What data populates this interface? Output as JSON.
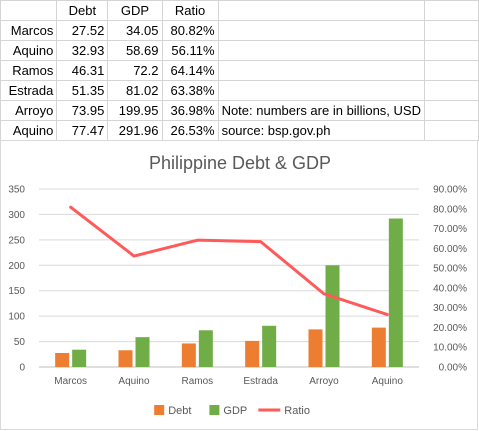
{
  "sheet": {
    "headers": [
      "",
      "Debt",
      "GDP",
      "Ratio",
      "",
      ""
    ],
    "rows": [
      {
        "name": "Marcos",
        "debt": "27.52",
        "gdp": "34.05",
        "ratio": "80.82%",
        "note": ""
      },
      {
        "name": "Aquino",
        "debt": "32.93",
        "gdp": "58.69",
        "ratio": "56.11%",
        "note": ""
      },
      {
        "name": "Ramos",
        "debt": "46.31",
        "gdp": "72.2",
        "ratio": "64.14%",
        "note": ""
      },
      {
        "name": "Estrada",
        "debt": "51.35",
        "gdp": "81.02",
        "ratio": "63.38%",
        "note": ""
      },
      {
        "name": "Arroyo",
        "debt": "73.95",
        "gdp": "199.95",
        "ratio": "36.98%",
        "note": "Note: numbers are in billions, USD"
      },
      {
        "name": "Aquino",
        "debt": "77.47",
        "gdp": "291.96",
        "ratio": "26.53%",
        "note": "source: bsp.gov.ph"
      }
    ]
  },
  "chart_data": {
    "type": "bar",
    "title": "Philippine Debt & GDP",
    "categories": [
      "Marcos",
      "Aquino",
      "Ramos",
      "Estrada",
      "Arroyo",
      "Aquino"
    ],
    "series": [
      {
        "name": "Debt",
        "type": "bar",
        "axis": "left",
        "color": "#ED7D31",
        "values": [
          27.52,
          32.93,
          46.31,
          51.35,
          73.95,
          77.47
        ]
      },
      {
        "name": "GDP",
        "type": "bar",
        "axis": "left",
        "color": "#70AD47",
        "values": [
          34.05,
          58.69,
          72.2,
          81.02,
          199.95,
          291.96
        ]
      },
      {
        "name": "Ratio",
        "type": "line",
        "axis": "right",
        "color": "#FF5A5A",
        "values": [
          0.8082,
          0.5611,
          0.6414,
          0.6338,
          0.3698,
          0.2653
        ]
      }
    ],
    "y_left": {
      "min": 0,
      "max": 350,
      "step": 50,
      "ticks": [
        "0",
        "50",
        "100",
        "150",
        "200",
        "250",
        "300",
        "350"
      ]
    },
    "y_right": {
      "min": 0,
      "max": 0.9,
      "step": 0.1,
      "ticks": [
        "0.00%",
        "10.00%",
        "20.00%",
        "30.00%",
        "40.00%",
        "50.00%",
        "60.00%",
        "70.00%",
        "80.00%",
        "90.00%"
      ]
    },
    "grid": true,
    "legend": "bottom",
    "xlabel": "",
    "ylabel": ""
  }
}
